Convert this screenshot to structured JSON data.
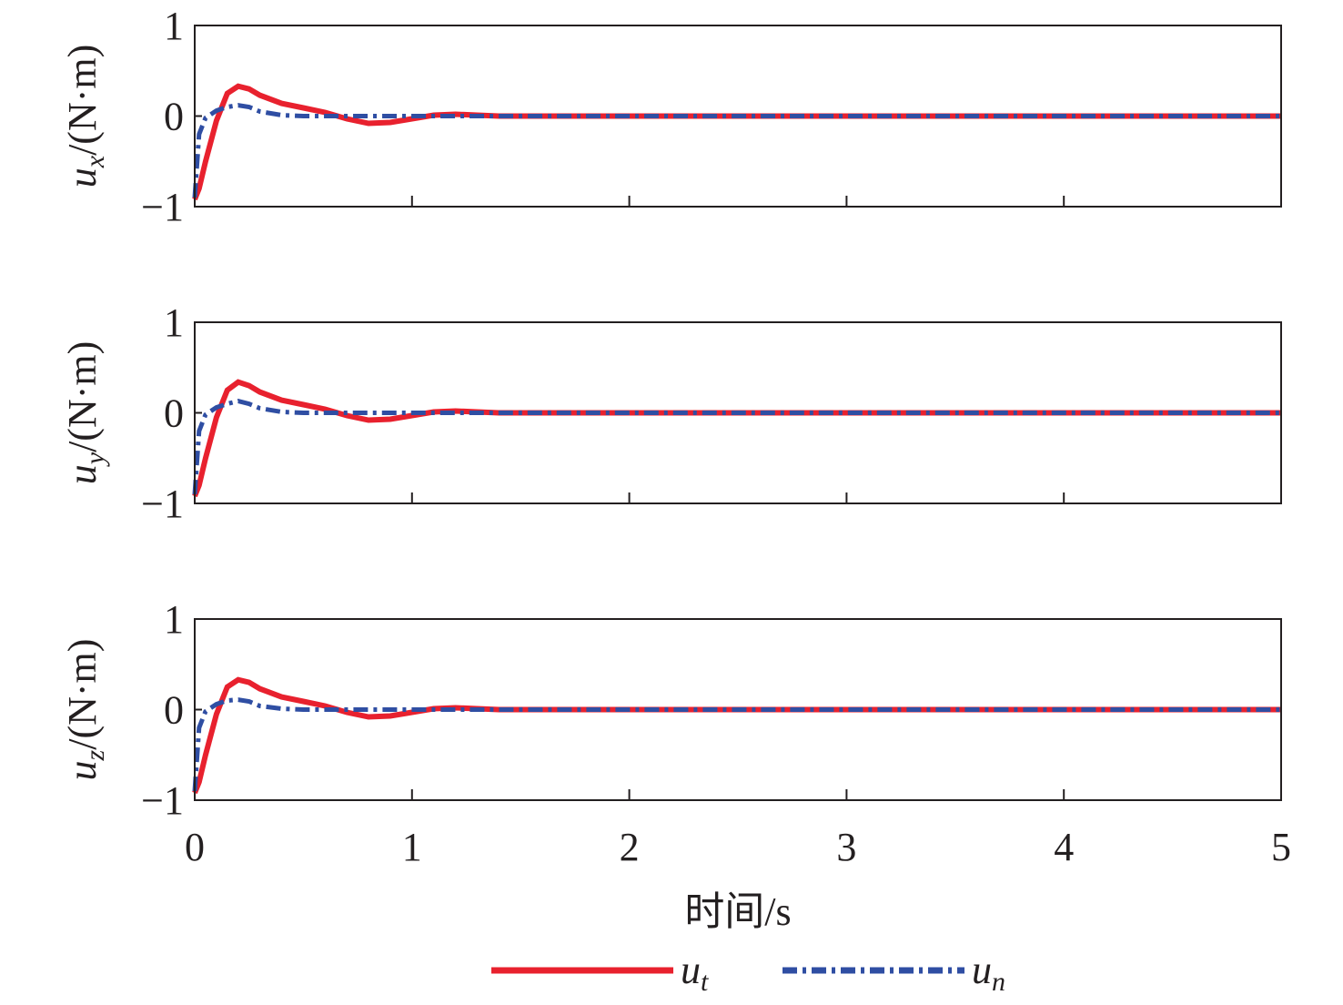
{
  "charts_x_label": "时间/s",
  "legend": [
    {
      "name": "u",
      "subscript": "t",
      "color": "#e8212e",
      "line_style": "solid"
    },
    {
      "name": "u",
      "subscript": "n",
      "color": "#2f4ea3",
      "line_style": "dashdot"
    }
  ],
  "chart_data": [
    {
      "type": "line",
      "ylabel": [
        "u",
        "x",
        "/(N·m)"
      ],
      "x": [
        0,
        0.02,
        0.05,
        0.1,
        0.15,
        0.2,
        0.25,
        0.3,
        0.4,
        0.5,
        0.6,
        0.7,
        0.8,
        0.9,
        1.0,
        1.1,
        1.2,
        1.3,
        1.4,
        1.5,
        2,
        3,
        4,
        5
      ],
      "series": [
        {
          "color": "#e8212e",
          "line_style": "solid",
          "values": [
            -0.92,
            -0.8,
            -0.5,
            -0.05,
            0.25,
            0.33,
            0.3,
            0.23,
            0.14,
            0.09,
            0.04,
            -0.03,
            -0.08,
            -0.07,
            -0.03,
            0.01,
            0.02,
            0.01,
            0,
            0,
            0,
            0,
            0,
            0
          ]
        },
        {
          "color": "#2f4ea3",
          "line_style": "dashdot",
          "values": [
            -0.9,
            -0.2,
            -0.02,
            0.06,
            0.1,
            0.12,
            0.1,
            0.05,
            0.01,
            0,
            0,
            0,
            0,
            0,
            0,
            0,
            0,
            0,
            0,
            0,
            0,
            0,
            0,
            0
          ]
        }
      ],
      "xlim": [
        0,
        5
      ],
      "xticks": [
        0,
        1,
        2,
        3,
        4,
        5
      ],
      "ylim": [
        -1,
        1
      ],
      "yticks": [
        {
          "value": -1,
          "label": "−1"
        },
        0,
        1
      ]
    },
    {
      "type": "line",
      "ylabel": [
        "u",
        "y",
        "/(N·m)"
      ],
      "x": [
        0,
        0.02,
        0.05,
        0.1,
        0.15,
        0.2,
        0.25,
        0.3,
        0.4,
        0.5,
        0.6,
        0.7,
        0.8,
        0.9,
        1.0,
        1.1,
        1.2,
        1.3,
        1.4,
        1.5,
        2,
        3,
        4,
        5
      ],
      "series": [
        {
          "color": "#e8212e",
          "line_style": "solid",
          "values": [
            -0.92,
            -0.8,
            -0.5,
            -0.05,
            0.25,
            0.34,
            0.3,
            0.23,
            0.14,
            0.09,
            0.04,
            -0.03,
            -0.08,
            -0.07,
            -0.03,
            0.01,
            0.02,
            0.01,
            0,
            0,
            0,
            0,
            0,
            0
          ]
        },
        {
          "color": "#2f4ea3",
          "line_style": "dashdot",
          "values": [
            -0.9,
            -0.2,
            -0.02,
            0.06,
            0.1,
            0.13,
            0.1,
            0.05,
            0.01,
            0,
            0,
            0,
            0,
            0,
            0,
            0,
            0,
            0,
            0,
            0,
            0,
            0,
            0,
            0
          ]
        }
      ],
      "xlim": [
        0,
        5
      ],
      "xticks": [
        0,
        1,
        2,
        3,
        4,
        5
      ],
      "ylim": [
        -1,
        1
      ],
      "yticks": [
        {
          "value": -1,
          "label": "−1"
        },
        0,
        1
      ]
    },
    {
      "type": "line",
      "ylabel": [
        "u",
        "z",
        "/(N·m)"
      ],
      "x": [
        0,
        0.02,
        0.05,
        0.1,
        0.15,
        0.2,
        0.25,
        0.3,
        0.4,
        0.5,
        0.6,
        0.7,
        0.8,
        0.9,
        1.0,
        1.1,
        1.2,
        1.3,
        1.4,
        1.5,
        2,
        3,
        4,
        5
      ],
      "series": [
        {
          "color": "#e8212e",
          "line_style": "solid",
          "values": [
            -0.92,
            -0.8,
            -0.5,
            -0.05,
            0.25,
            0.33,
            0.3,
            0.23,
            0.14,
            0.09,
            0.04,
            -0.03,
            -0.08,
            -0.07,
            -0.03,
            0.01,
            0.02,
            0.01,
            0,
            0,
            0,
            0,
            0,
            0
          ]
        },
        {
          "color": "#2f4ea3",
          "line_style": "dashdot",
          "values": [
            -0.9,
            -0.2,
            -0.02,
            0.06,
            0.1,
            0.11,
            0.09,
            0.04,
            0.01,
            0,
            0,
            0,
            0,
            0,
            0,
            0,
            0,
            0,
            0,
            0,
            0,
            0,
            0,
            0
          ]
        }
      ],
      "xlim": [
        0,
        5
      ],
      "xticks": [
        0,
        1,
        2,
        3,
        4,
        5
      ],
      "ylim": [
        -1,
        1
      ],
      "yticks": [
        {
          "value": -1,
          "label": "−1"
        },
        0,
        1
      ]
    }
  ]
}
